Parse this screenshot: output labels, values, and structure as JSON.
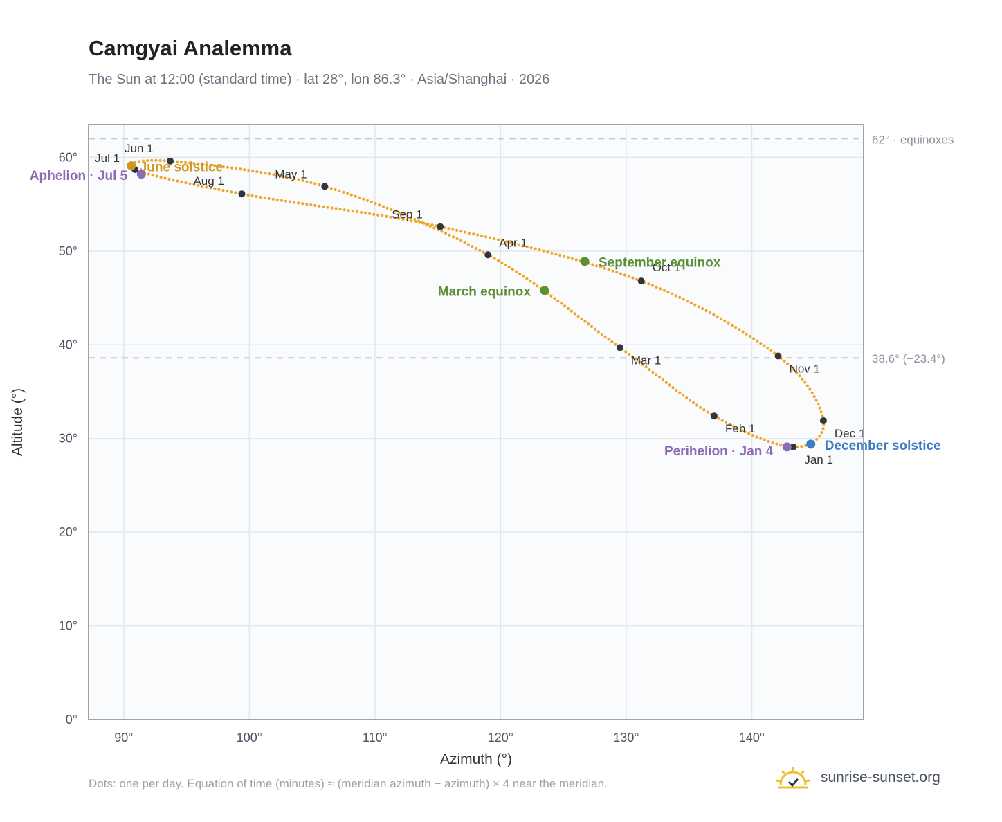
{
  "header": {
    "title": "Camgyai Analemma",
    "subtitle": "The Sun at 12:00 (standard time) · lat 28°, lon 86.3° · Asia/Shanghai · 2026"
  },
  "footer": {
    "note": "Dots: one per day. Equation of time (minutes) ≈ (meridian azimuth − azimuth) × 4 near the meridian.",
    "brand": "sunrise-sunset.org"
  },
  "colors": {
    "curve": "#f0a62a",
    "month_dot": "#2f3441",
    "equinox": "#5a8f33",
    "june_solstice": "#d4951c",
    "december_solstice": "#3b7dc4",
    "apsis": "#8e6bb5",
    "reference_line": "#c4cad2",
    "plot_bg": "#f9fbfd",
    "plot_border": "#9aa3ae",
    "grid": "#e3e7ec"
  },
  "chart_data": {
    "type": "scatter",
    "title": "Camgyai Analemma",
    "xlabel": "Azimuth (°)",
    "ylabel": "Altitude (°)",
    "xlim": [
      87.2,
      148.9
    ],
    "ylim": [
      0,
      63.5
    ],
    "xticks": [
      90,
      100,
      110,
      120,
      130,
      140
    ],
    "xtick_labels": [
      "90°",
      "100°",
      "110°",
      "120°",
      "130°",
      "140°"
    ],
    "yticks": [
      0,
      10,
      20,
      30,
      40,
      50,
      60
    ],
    "ytick_labels": [
      "0°",
      "10°",
      "20°",
      "30°",
      "40°",
      "50°",
      "60°"
    ],
    "grid": true,
    "reference_lines": [
      {
        "y": 62.0,
        "label": "62° · equinoxes"
      },
      {
        "y": 38.6,
        "label": "38.6° (−23.4°)"
      }
    ],
    "month_points": [
      {
        "label": "Jan 1",
        "az": 143.3,
        "alt": 29.1
      },
      {
        "label": "Feb 1",
        "az": 137.0,
        "alt": 32.4
      },
      {
        "label": "Mar 1",
        "az": 129.5,
        "alt": 39.7
      },
      {
        "label": "Apr 1",
        "az": 119.0,
        "alt": 49.6
      },
      {
        "label": "May 1",
        "az": 106.0,
        "alt": 56.9
      },
      {
        "label": "Jun 1",
        "az": 93.7,
        "alt": 59.6
      },
      {
        "label": "Jul 1",
        "az": 90.9,
        "alt": 58.7
      },
      {
        "label": "Aug 1",
        "az": 99.4,
        "alt": 56.1
      },
      {
        "label": "Sep 1",
        "az": 115.2,
        "alt": 52.6
      },
      {
        "label": "Oct 1",
        "az": 131.2,
        "alt": 46.8
      },
      {
        "label": "Nov 1",
        "az": 142.1,
        "alt": 38.8
      },
      {
        "label": "Dec 1",
        "az": 145.7,
        "alt": 31.9
      }
    ],
    "events": [
      {
        "label": "March equinox",
        "az": 123.5,
        "alt": 45.8,
        "kind": "equinox"
      },
      {
        "label": "June solstice",
        "az": 90.6,
        "alt": 59.1,
        "kind": "june_solstice"
      },
      {
        "label": "September equinox",
        "az": 126.7,
        "alt": 48.9,
        "kind": "equinox"
      },
      {
        "label": "December solstice",
        "az": 144.7,
        "alt": 29.4,
        "kind": "december_solstice"
      },
      {
        "label": "Perihelion · Jan 4",
        "az": 142.8,
        "alt": 29.1,
        "kind": "apsis"
      },
      {
        "label": "Aphelion · Jul 5",
        "az": 91.4,
        "alt": 58.2,
        "kind": "apsis"
      }
    ]
  }
}
